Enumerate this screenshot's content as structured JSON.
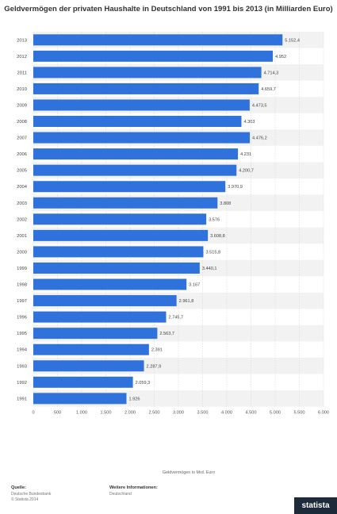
{
  "chart_data": {
    "type": "bar",
    "orientation": "horizontal",
    "title": "Geldvermögen der privaten Haushalte in Deutschland von 1991 bis 2013 (in Milliarden Euro)",
    "xlabel": "Geldvermögen in Mrd. Euro",
    "xlim": [
      0,
      6000
    ],
    "x_ticks": [
      "0",
      "500",
      "1.000",
      "1.500",
      "2.000",
      "2.500",
      "3.000",
      "3.500",
      "4.000",
      "4.500",
      "5.000",
      "5.500",
      "6.000"
    ],
    "categories": [
      "2013",
      "2012",
      "2011",
      "2010",
      "2009",
      "2008",
      "2007",
      "2006",
      "2005",
      "2004",
      "2003",
      "2002",
      "2001",
      "2000",
      "1999",
      "1998",
      "1997",
      "1996",
      "1995",
      "1994",
      "1993",
      "1992",
      "1991"
    ],
    "values": [
      5152.4,
      4952,
      4714.3,
      4659.7,
      4473.5,
      4303,
      4476.2,
      4231,
      4200.7,
      3970.9,
      3808,
      3576,
      3608.8,
      3515.8,
      3440.1,
      3167,
      2961.8,
      2745.7,
      2563.7,
      2391,
      2287.9,
      2059.3,
      1926
    ],
    "value_labels": [
      "5.152,4",
      "4.952",
      "4.714,3",
      "4.659,7",
      "4.473,5",
      "4.303",
      "4.476,2",
      "4.231",
      "4.200,7",
      "3.970,9",
      "3.808",
      "3.576",
      "3.608,8",
      "3.515,8",
      "3.440,1",
      "3.167",
      "2.961,8",
      "2.745,7",
      "2.563,7",
      "2.391",
      "2.287,9",
      "2.059,3",
      "1.926"
    ],
    "bar_color": "#2f72dc",
    "grid": true
  },
  "footer": {
    "source_heading": "Quelle:",
    "source_line1": "Deutsche Bundesbank",
    "source_line2": "© Statista 2014",
    "info_heading": "Weitere Informationen:",
    "info_line1": "Deutschland"
  },
  "brand": {
    "name": "statista"
  }
}
